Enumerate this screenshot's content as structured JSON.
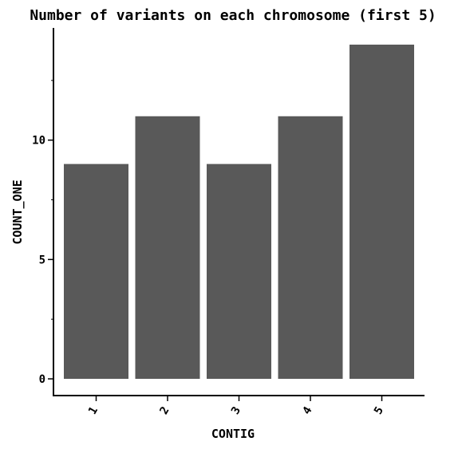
{
  "chart_data": {
    "type": "bar",
    "title": "Number of variants on each chromosome (first 5)",
    "xlabel": "CONTIG",
    "ylabel": "COUNT_ONE",
    "categories": [
      "1",
      "2",
      "3",
      "4",
      "5"
    ],
    "values": [
      9,
      11,
      9,
      11,
      14
    ],
    "ylim": [
      -0.7,
      14.7
    ],
    "yticks_major": [
      0,
      5,
      10
    ],
    "yticks_minor": [
      2.5,
      7.5,
      12.5
    ],
    "bar_color": "#595959",
    "grid": false,
    "legend": "none"
  }
}
